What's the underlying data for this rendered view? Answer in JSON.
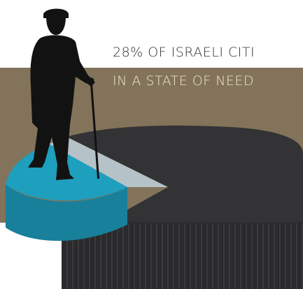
{
  "headline": {
    "line1": "28% OF ISRAELI CITI",
    "line2": "IN A STATE OF NEED",
    "line1_color": "#333333",
    "line2_color": "#f0e6c8"
  },
  "colors": {
    "band": "#82735a",
    "pie_main_top": "#333335",
    "pie_main_side": "#2a2a2c",
    "pie_slice_top": "#1e9fbd",
    "pie_slice_side": "#18809b",
    "pie_inner_slice": "#b5c2c8",
    "figure": "#121212"
  },
  "figure_icon": "elderly-man-with-cane-icon",
  "chart_data": {
    "type": "pie",
    "style": "3d",
    "slices": [
      {
        "value": 28,
        "color": "#1e9fbd"
      },
      {
        "value": 72,
        "color": "#333335"
      }
    ]
  }
}
